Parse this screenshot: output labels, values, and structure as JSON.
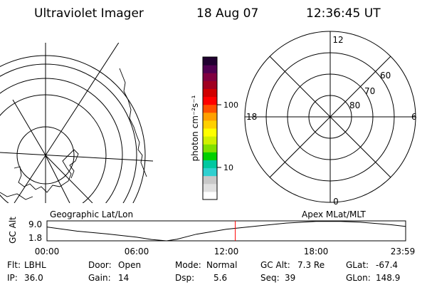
{
  "header": {
    "instrument": "Ultraviolet Imager",
    "date": "18 Aug 07",
    "time": "12:36:45 UT"
  },
  "colorbar": {
    "unit_label": "photon cm⁻²s⁻¹",
    "tick_labels": [
      "100",
      "10"
    ],
    "colors": [
      "#ffffff",
      "#e0e0e0",
      "#c8c8c8",
      "#30d0d0",
      "#00c8a0",
      "#00d000",
      "#80e000",
      "#d0f000",
      "#ffff00",
      "#ffd000",
      "#ffa000",
      "#ff5000",
      "#ff0000",
      "#d00000",
      "#a00020",
      "#800040",
      "#500050",
      "#200030"
    ]
  },
  "geo_map": {
    "label": "Geographic Lat/Lon"
  },
  "apex_grid": {
    "label": "Apex MLat/MLT",
    "mlt_labels": {
      "top": "12",
      "bottom": "0",
      "left": "18",
      "right": "6"
    },
    "lat_labels": [
      "60",
      "70",
      "80"
    ]
  },
  "timeline": {
    "axis_label": "GC Alt",
    "y_ticks": [
      "9.0",
      "1.8"
    ],
    "x_ticks": [
      "00:00",
      "06:00",
      "12:00",
      "18:00",
      "23:59"
    ],
    "marker_color": "#ff0000",
    "chart_data": {
      "type": "line",
      "xlabel": "",
      "ylabel": "GC Alt",
      "xlim": [
        0,
        24
      ],
      "ylim": [
        1.8,
        9.0
      ],
      "x": [
        0,
        2,
        4,
        6,
        7,
        8,
        8.7,
        10,
        12,
        14,
        16,
        18,
        19.5,
        21,
        23,
        23.98
      ],
      "y": [
        6.8,
        5.3,
        4.3,
        3.1,
        2.3,
        1.8,
        2.4,
        4.2,
        6.0,
        7.1,
        8.2,
        8.8,
        8.85,
        8.5,
        7.6,
        7.0
      ],
      "marker_x": 12.6,
      "series": [
        {
          "name": "",
          "values": [
            6.8,
            5.3,
            4.3,
            3.1,
            2.3,
            1.8,
            2.4,
            4.2,
            6.0,
            7.1,
            8.2,
            8.8,
            8.85,
            8.5,
            7.6,
            7.0
          ]
        }
      ]
    }
  },
  "info": [
    [
      {
        "label": "Flt:",
        "value": "LBHL"
      },
      {
        "label": "Door:",
        "value": "Open"
      },
      {
        "label": "Mode:",
        "value": "Normal"
      },
      {
        "label": "GC Alt:",
        "value": "7.3 Re"
      },
      {
        "label": "GLat:",
        "value": "-67.4"
      }
    ],
    [
      {
        "label": "IP:",
        "value": "36.0"
      },
      {
        "label": "Gain:",
        "value": "14"
      },
      {
        "label": "Dsp:",
        "value": "5.6"
      },
      {
        "label": "Seq:",
        "value": "39"
      },
      {
        "label": "GLon:",
        "value": "148.9"
      }
    ]
  ]
}
